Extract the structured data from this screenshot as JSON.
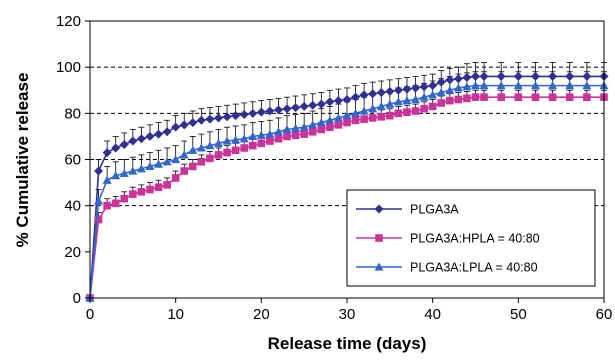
{
  "chart_data": {
    "type": "line",
    "title": "",
    "xlabel": "Release time (days)",
    "ylabel": "% Cumulative release",
    "xlim": [
      0,
      60
    ],
    "ylim": [
      0,
      120
    ],
    "x_ticks": [
      0,
      10,
      20,
      30,
      40,
      50,
      60
    ],
    "y_ticks": [
      0,
      20,
      40,
      60,
      80,
      100,
      120
    ],
    "grid": "horizontal dashed lines at 40, 60, 80, 100",
    "legend_position": "bottom-right",
    "error_bars": true,
    "series": [
      {
        "name": "PLGA3A",
        "color": "#2e3192",
        "marker": "diamond",
        "x": [
          0,
          1,
          2,
          3,
          4,
          5,
          6,
          7,
          8,
          9,
          10,
          11,
          12,
          13,
          14,
          15,
          16,
          17,
          18,
          19,
          20,
          21,
          22,
          23,
          24,
          25,
          26,
          27,
          28,
          29,
          30,
          31,
          32,
          33,
          34,
          35,
          36,
          37,
          38,
          39,
          40,
          41,
          42,
          43,
          44,
          45,
          46,
          48,
          50,
          52,
          54,
          56,
          58,
          60
        ],
        "y": [
          0,
          55,
          63,
          65,
          66.5,
          68,
          69,
          70,
          71,
          72,
          74,
          75,
          76,
          77,
          77.5,
          78,
          78.5,
          79,
          79.5,
          80,
          80.5,
          81,
          81.5,
          82,
          82.5,
          83,
          83.5,
          84,
          85,
          85.5,
          86,
          87,
          88,
          88.5,
          89,
          89.5,
          90,
          90.5,
          91,
          91.5,
          92,
          93.5,
          94.5,
          95,
          95.5,
          96,
          96,
          96,
          96,
          96,
          96,
          96,
          96,
          96
        ],
        "error": [
          0,
          5,
          5,
          5,
          5,
          5,
          5,
          5,
          5,
          5,
          5,
          5,
          5,
          5,
          5,
          5,
          5,
          5,
          5,
          5,
          5,
          5,
          5,
          5,
          5,
          5,
          5,
          5,
          5,
          5,
          5,
          5,
          5,
          5,
          5,
          5,
          5,
          5,
          5,
          5,
          5,
          5,
          5,
          5,
          6,
          6,
          6,
          6,
          6,
          6,
          6,
          6,
          6,
          6
        ]
      },
      {
        "name": "PLGA3A:HPLA = 40:80",
        "color": "#cc3399",
        "marker": "square",
        "x": [
          0,
          1,
          2,
          3,
          4,
          5,
          6,
          7,
          8,
          9,
          10,
          11,
          12,
          13,
          14,
          15,
          16,
          17,
          18,
          19,
          20,
          21,
          22,
          23,
          24,
          25,
          26,
          27,
          28,
          29,
          30,
          31,
          32,
          33,
          34,
          35,
          36,
          37,
          38,
          39,
          40,
          41,
          42,
          43,
          44,
          45,
          46,
          48,
          50,
          52,
          54,
          56,
          58,
          60
        ],
        "y": [
          0,
          34,
          40,
          41,
          43,
          45,
          46,
          47,
          48,
          49,
          52,
          55,
          57,
          59,
          60.5,
          62,
          63,
          64,
          65,
          66,
          67,
          68,
          69,
          70,
          70.5,
          71,
          72,
          73,
          74,
          75,
          76,
          77,
          77.5,
          78,
          78.5,
          79,
          80,
          80.5,
          81,
          82,
          83,
          84.5,
          85.5,
          86,
          86.5,
          87,
          87,
          87,
          87,
          87,
          87,
          87,
          87,
          87
        ],
        "error": [
          0,
          3,
          3,
          3,
          3,
          3,
          3,
          3,
          3,
          3,
          3,
          3,
          3,
          3,
          3,
          3,
          3,
          3,
          3,
          3,
          3,
          3,
          3,
          3,
          3,
          3,
          3,
          3,
          3,
          3,
          3,
          3,
          3,
          3,
          3,
          3,
          3,
          3,
          3,
          3,
          3,
          3,
          3,
          3,
          3,
          3,
          3,
          3,
          3,
          3,
          3,
          3,
          3,
          3
        ]
      },
      {
        "name": "PLGA3A:LPLA = 40:80",
        "color": "#3366cc",
        "marker": "triangle",
        "x": [
          0,
          1,
          2,
          3,
          4,
          5,
          6,
          7,
          8,
          9,
          10,
          11,
          12,
          13,
          14,
          15,
          16,
          17,
          18,
          19,
          20,
          21,
          22,
          23,
          24,
          25,
          26,
          27,
          28,
          29,
          30,
          31,
          32,
          33,
          34,
          35,
          36,
          37,
          38,
          39,
          40,
          41,
          42,
          43,
          44,
          45,
          46,
          48,
          50,
          52,
          54,
          56,
          58,
          60
        ],
        "y": [
          0,
          42,
          51,
          53,
          54,
          55,
          56,
          57,
          58,
          59,
          60,
          62,
          64,
          65,
          66,
          67,
          68,
          68.5,
          69,
          70,
          70.5,
          71,
          72,
          73,
          73.5,
          74,
          75,
          76,
          77,
          78,
          79,
          80,
          81,
          82,
          83,
          84,
          85,
          85.5,
          86,
          87,
          88,
          89,
          90,
          91,
          91.5,
          92,
          92,
          92,
          92,
          92,
          92,
          92,
          92,
          92
        ],
        "error": [
          0,
          5,
          6,
          6,
          6,
          6,
          6,
          6,
          6,
          6,
          6,
          6,
          6,
          6,
          6,
          6,
          6,
          6,
          6,
          6,
          6,
          6,
          6,
          6,
          6,
          6,
          6,
          6,
          6,
          6,
          6,
          6,
          6,
          6,
          6,
          6,
          6,
          6,
          6,
          6,
          6,
          6,
          6,
          6,
          6,
          6,
          6,
          6,
          6,
          6,
          6,
          6,
          6,
          6
        ]
      }
    ]
  }
}
